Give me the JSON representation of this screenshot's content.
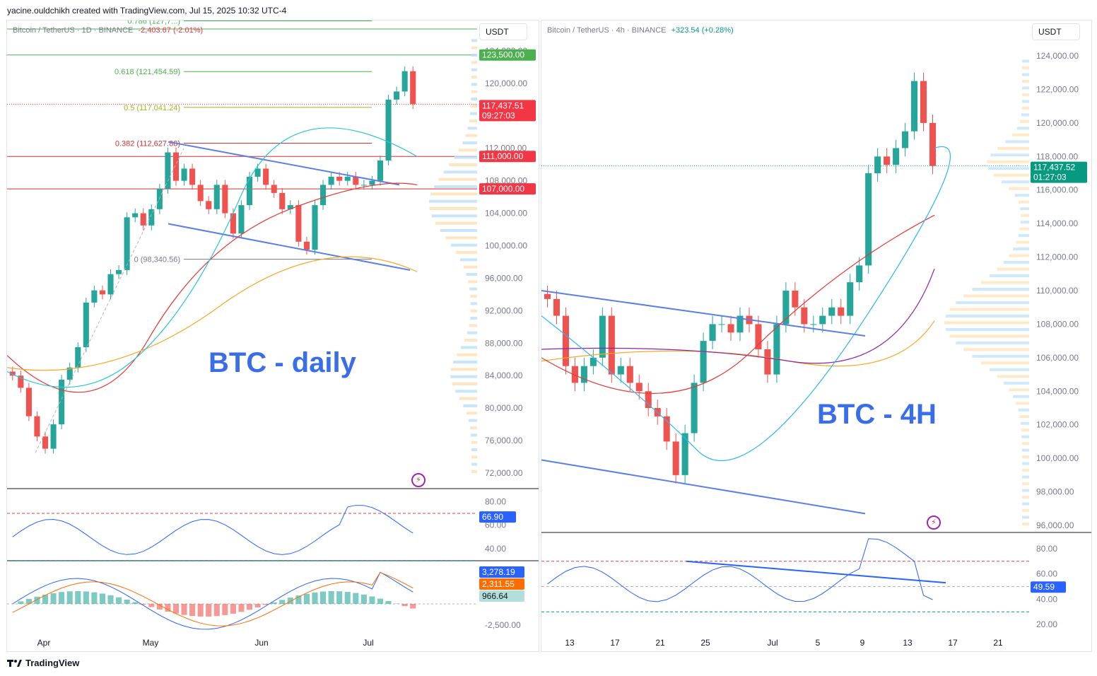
{
  "header": {
    "created_by": "yacine.ouldchikh created with TradingView.com, Jul 15, 2025 10:32 UTC-4"
  },
  "footer": {
    "brand": "TradingView"
  },
  "colors": {
    "up": "#26a69a",
    "down": "#ef5350",
    "accent": "#2962ff",
    "annotation": "#3a6ee8"
  },
  "left_chart": {
    "legend": "Bitcoin / TetherUS · 1D · BINANCE",
    "legend_change": "-2,403.67 (-2.01%)",
    "unit": "USDT",
    "annotation": "BTC - daily",
    "price_axis": [
      "124,000.00",
      "120,000.00",
      "116,000.00",
      "112,000.00",
      "108,000.00",
      "104,000.00",
      "100,000.00",
      "96,000.00",
      "92,000.00",
      "88,000.00",
      "84,000.00",
      "80,000.00",
      "76,000.00",
      "72,000.00"
    ],
    "price_labels": {
      "level_123500": "123,500.00",
      "current": "117,437.51",
      "countdown": "09:27:03",
      "level_111000": "111,000.00",
      "level_107000": "107,000.00"
    },
    "fib_levels": [
      {
        "label": "0.786 (127,7...)",
        "price": 127700,
        "color": "#4caf50"
      },
      {
        "label": "0.618 (121,454.59)",
        "price": 121454.59,
        "color": "#4caf50"
      },
      {
        "label": "0.5 (117,041.24)",
        "price": 117041.24,
        "color": "#a5b31f"
      },
      {
        "label": "0.382 (112,627.88)",
        "price": 112627.88,
        "color": "#d32f2f"
      },
      {
        "label": "0 (98,340.56)",
        "price": 98340.56,
        "color": "#787b86"
      }
    ],
    "time_axis": [
      "Apr",
      "May",
      "Jun",
      "Jul"
    ],
    "rsi": {
      "axis": [
        "80.00",
        "60.00",
        "40.00"
      ],
      "value": "66.90"
    },
    "macd": {
      "axis": [
        "2,500.00",
        "-2,500.00"
      ],
      "macd": "3,278.19",
      "signal": "2,311.55",
      "hist": "966.64"
    }
  },
  "right_chart": {
    "legend": "Bitcoin / TetherUS · 4h · BINANCE",
    "legend_change": "+323.54 (+0.28%)",
    "unit": "USDT",
    "annotation": "BTC - 4H",
    "price_axis": [
      "124,000.00",
      "122,000.00",
      "120,000.00",
      "118,000.00",
      "116,000.00",
      "114,000.00",
      "112,000.00",
      "110,000.00",
      "108,000.00",
      "106,000.00",
      "104,000.00",
      "102,000.00",
      "100,000.00",
      "98,000.00",
      "96,000.00"
    ],
    "price_labels": {
      "current": "117,437.52",
      "countdown": "01:27:03"
    },
    "time_axis": [
      "13",
      "17",
      "21",
      "25",
      "Jul",
      "5",
      "9",
      "13",
      "17",
      "21"
    ],
    "rsi": {
      "axis": [
        "80.00",
        "60.00",
        "40.00",
        "20.00"
      ],
      "value": "49.59"
    }
  },
  "chart_data": [
    {
      "type": "line",
      "title": "Bitcoin / TetherUS · 1D · BINANCE",
      "xlabel": "",
      "ylabel": "USDT",
      "ylim": [
        72000,
        126000
      ],
      "series": [
        {
          "name": "Bitcoin / TetherUS · 1D · BINANCE",
          "values": [
            84000,
            82500,
            79000,
            76500,
            75000,
            78000,
            83500,
            85000,
            87500,
            93000,
            94500,
            94000,
            96500,
            97000,
            103500,
            104000,
            102500,
            104500,
            107000,
            111500,
            108000,
            109500,
            107500,
            105500,
            104500,
            107500,
            104000,
            101500,
            105000,
            108500,
            109500,
            107500,
            106500,
            104500,
            105000,
            100500,
            99500,
            105000,
            107500,
            108500,
            108000,
            108500,
            107500,
            107500,
            108000,
            110500,
            118000,
            119000,
            121500,
            117437
          ]
        }
      ],
      "rsi_value": 66.9
    },
    {
      "type": "line",
      "title": "Bitcoin / TetherUS · 4h · BINANCE",
      "xlabel": "",
      "ylabel": "USDT",
      "ylim": [
        95500,
        125000
      ],
      "series": [
        {
          "name": "Bitcoin / TetherUS · 4h · BINANCE",
          "values": [
            109500,
            108500,
            105500,
            104500,
            105500,
            106000,
            108500,
            105000,
            105500,
            104500,
            104000,
            103000,
            102500,
            101000,
            99000,
            101500,
            104500,
            107000,
            108000,
            108000,
            107500,
            108500,
            108000,
            106500,
            105000,
            108000,
            110000,
            109000,
            108000,
            108000,
            108500,
            109000,
            108500,
            110500,
            111500,
            117000,
            118000,
            117500,
            118500,
            119500,
            122500,
            120000,
            117437
          ]
        }
      ],
      "rsi_value": 49.59
    }
  ]
}
